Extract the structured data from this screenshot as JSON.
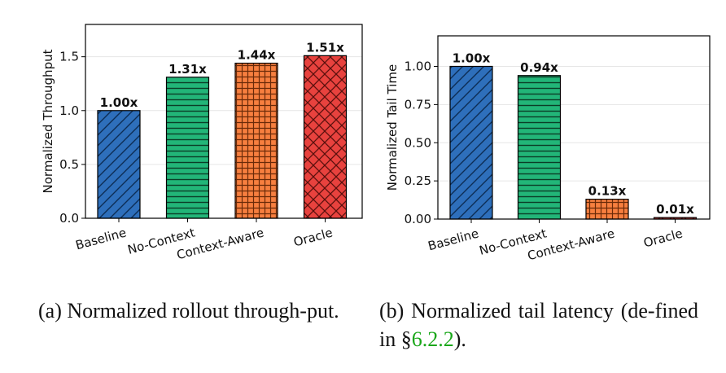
{
  "chart_data": [
    {
      "type": "bar",
      "ylabel": "Normalized Throughput",
      "categories": [
        "Baseline",
        "No-Context",
        "Context-Aware",
        "Oracle"
      ],
      "values": [
        1.0,
        1.31,
        1.44,
        1.51
      ],
      "data_labels": [
        "1.00x",
        "1.31x",
        "1.44x",
        "1.51x"
      ],
      "ylim": [
        0,
        1.8
      ],
      "yticks": [
        "0.0",
        "0.5",
        "1.0",
        "1.5"
      ],
      "ytick_values": [
        0.0,
        0.5,
        1.0,
        1.5
      ],
      "colors": [
        "#2e6fbb",
        "#22b578",
        "#f77f3f",
        "#e8423e"
      ],
      "hatches": [
        "diagonal",
        "horizontal",
        "grid",
        "crosshatch"
      ],
      "grid": true
    },
    {
      "type": "bar",
      "ylabel": "Normalized Tail Time",
      "categories": [
        "Baseline",
        "No-Context",
        "Context-Aware",
        "Oracle"
      ],
      "values": [
        1.0,
        0.94,
        0.13,
        0.01
      ],
      "data_labels": [
        "1.00x",
        "0.94x",
        "0.13x",
        "0.01x"
      ],
      "ylim": [
        0,
        1.2
      ],
      "yticks": [
        "0.00",
        "0.25",
        "0.50",
        "0.75",
        "1.00"
      ],
      "ytick_values": [
        0.0,
        0.25,
        0.5,
        0.75,
        1.0
      ],
      "colors": [
        "#2e6fbb",
        "#22b578",
        "#f77f3f",
        "#e8423e"
      ],
      "hatches": [
        "diagonal",
        "horizontal",
        "grid",
        "crosshatch"
      ],
      "grid": true
    }
  ],
  "captions": {
    "a_text": "(a) Normalized rollout through-put.",
    "b_text": "(b) Normalized tail latency (de-fined in §",
    "b_ref": "6.2.2",
    "b_end": ")."
  }
}
